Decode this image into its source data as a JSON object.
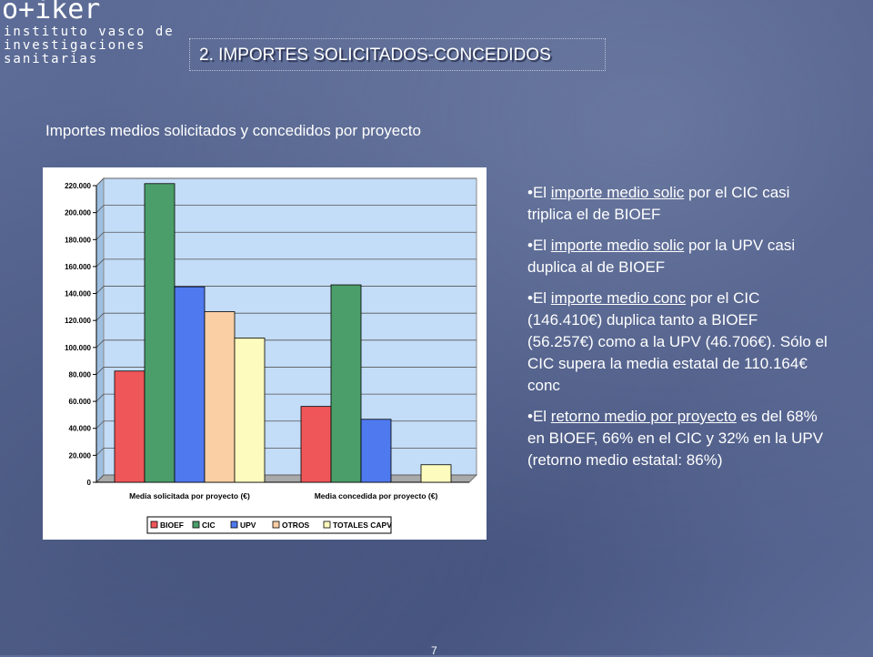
{
  "logo": {
    "name": "o+iker",
    "subtitle_lines": [
      "instituto vasco de",
      "investigaciones",
      "sanitarias"
    ]
  },
  "section_title": "2. IMPORTES SOLICITADOS-CONCEDIDOS",
  "subtitle": "Importes medios solicitados y concedidos por proyecto",
  "bullets": [
    {
      "bullet": "•",
      "pre": "El ",
      "underlined": "importe medio solic",
      "post": " por el CIC casi triplica el de BIOEF"
    },
    {
      "bullet": "•",
      "pre": "El ",
      "underlined": "importe medio solic",
      "post": " por la UPV casi duplica al de BIOEF"
    },
    {
      "bullet": "•",
      "pre": "El ",
      "underlined": "importe medio conc",
      "post": " por el CIC (146.410€) duplica tanto a BIOEF (56.257€) como a la UPV (46.706€). Sólo el CIC supera la media estatal de 110.164€ conc"
    },
    {
      "bullet": "•",
      "pre": "El ",
      "underlined": "retorno medio por proyecto",
      "post": " es del 68% en BIOEF, 66% en el CIC y 32% en la UPV (retorno medio estatal: 86%)"
    }
  ],
  "page_number": "7",
  "colors": {
    "plot_bg": "#c3dcf7",
    "BIOEF": "#ef5659",
    "CIC": "#4b9e6a",
    "UPV": "#4f79ee",
    "OTROS": "#fbcfa4",
    "TOTALES CAPV": "#fdfbbd"
  },
  "chart_data": {
    "type": "bar",
    "categories": [
      "Media solicitada por proyecto (€)",
      "Media concedida por proyecto (€)"
    ],
    "series": [
      {
        "name": "BIOEF",
        "values": [
          82500,
          56257
        ]
      },
      {
        "name": "CIC",
        "values": [
          221500,
          146410
        ]
      },
      {
        "name": "UPV",
        "values": [
          145000,
          46706
        ]
      },
      {
        "name": "OTROS",
        "values": [
          126500,
          null
        ]
      },
      {
        "name": "TOTALES CAPV",
        "values": [
          107000,
          13000
        ]
      }
    ],
    "ylim": [
      0,
      220000
    ],
    "yticks": [
      0,
      20000,
      40000,
      60000,
      80000,
      100000,
      120000,
      140000,
      160000,
      180000,
      200000,
      220000
    ],
    "ytick_labels": [
      "0",
      "20.000",
      "40.000",
      "60.000",
      "80.000",
      "100.000",
      "120.000",
      "140.000",
      "160.000",
      "180.000",
      "200.000",
      "220.000"
    ],
    "legend_position": "bottom",
    "grid": true
  }
}
